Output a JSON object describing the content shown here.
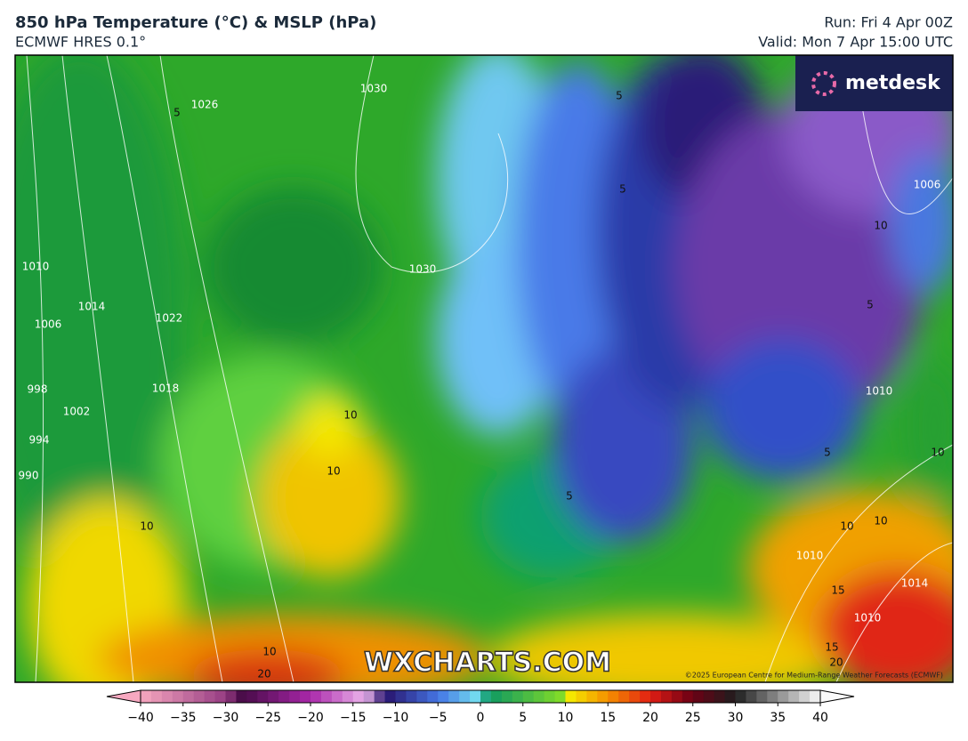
{
  "header": {
    "title": "850 hPa Temperature (°C) & MSLP (hPa)",
    "subtitle": "ECMWF HRES 0.1°",
    "run": "Run: Fri 4 Apr 00Z",
    "valid": "Valid: Mon 7 Apr 15:00 UTC"
  },
  "logo": "metdesk",
  "watermark": "WXCHARTS.COM",
  "copyright": "©2025 European Centre for Medium-Range Weather Forecasts (ECMWF)",
  "map": {
    "contour_labels": [
      "1026",
      "5",
      "1030",
      "5",
      "5",
      "1006",
      "10",
      "1030",
      "1010",
      "1014",
      "1006",
      "1022",
      "998",
      "1002",
      "994",
      "990",
      "1018",
      "10",
      "10",
      "10",
      "5",
      "5",
      "1010",
      "10",
      "10",
      "10",
      "10",
      "1010",
      "15",
      "1014",
      "1010",
      "15",
      "20",
      "20",
      "5"
    ]
  },
  "colorbar": {
    "range": [
      -40,
      40
    ],
    "ticks": [
      {
        "value": -40,
        "label": "−40"
      },
      {
        "value": -35,
        "label": "−35"
      },
      {
        "value": -30,
        "label": "−30"
      },
      {
        "value": -25,
        "label": "−25"
      },
      {
        "value": -20,
        "label": "−20"
      },
      {
        "value": -15,
        "label": "−15"
      },
      {
        "value": -10,
        "label": "−10"
      },
      {
        "value": -5,
        "label": "−5"
      },
      0,
      5,
      10,
      15,
      20,
      25,
      30,
      35,
      40
    ]
  }
}
